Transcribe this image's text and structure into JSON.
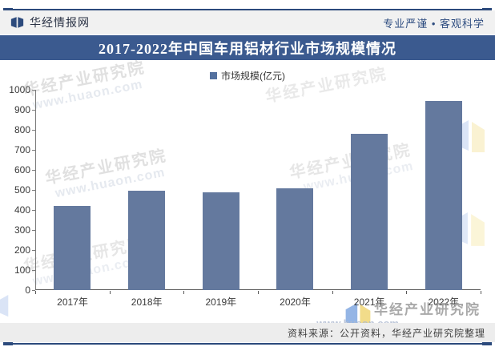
{
  "header": {
    "logo": "华经情报网",
    "slogan": "专业严谨 • 客观科学"
  },
  "title_bar": {
    "title": "2017-2022年中国车用铝材行业市场规模情况"
  },
  "legend": {
    "label": "市场规模(亿元)"
  },
  "chart_data": {
    "type": "bar",
    "title": "2017-2022年中国车用铝材行业市场规模情况",
    "categories": [
      "2017年",
      "2018年",
      "2019年",
      "2020年",
      "2021年",
      "2022年"
    ],
    "series": [
      {
        "name": "市场规模(亿元)",
        "values": [
          420,
          495,
          488,
          510,
          780,
          945
        ]
      }
    ],
    "xlabel": "",
    "ylabel": "",
    "ylim": [
      0,
      1000
    ],
    "ytick_step": 100,
    "grid": false,
    "legend_position": "top-center",
    "bar_color": "#64799E"
  },
  "watermarks": {
    "brand": "华经产业研究院",
    "url": "www.huaon.com"
  },
  "footer": {
    "source": "资料来源：公开资料，华经产业研究院整理"
  },
  "colors": {
    "banner": "#3B5A8F",
    "rule": "#2C4A7C",
    "bar": "#64799E",
    "header_band": "#F1F1F1",
    "footer_band": "#EDEDED",
    "accent_text": "#2E4D80"
  }
}
